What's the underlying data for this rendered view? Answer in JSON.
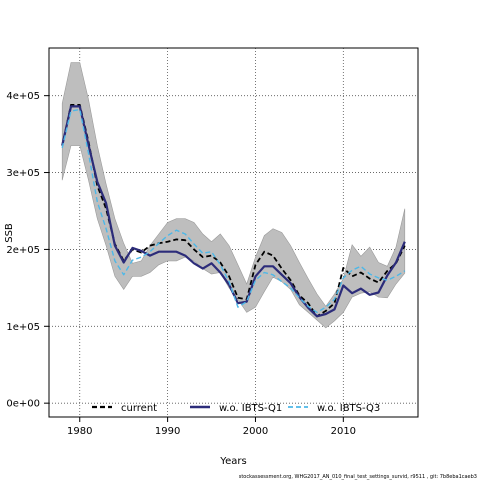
{
  "chart_data": {
    "type": "line",
    "xlabel": "Years",
    "ylabel": "SSB",
    "xlim": [
      1976.5,
      2018.5
    ],
    "ylim": [
      -18000,
      462000
    ],
    "x_ticks": [
      1980,
      1990,
      2000,
      2010
    ],
    "x_tick_labels": [
      "1980",
      "1990",
      "2000",
      "2010"
    ],
    "y_ticks": [
      0,
      100000,
      200000,
      300000,
      400000
    ],
    "y_tick_labels": [
      "0e+00",
      "1e+05",
      "2e+05",
      "3e+05",
      "4e+05"
    ],
    "grid": "dotted at ticks",
    "legend_position": "bottom",
    "x": [
      1978,
      1979,
      1980,
      1981,
      1982,
      1983,
      1984,
      1985,
      1986,
      1987,
      1988,
      1989,
      1990,
      1991,
      1992,
      1993,
      1994,
      1995,
      1996,
      1997,
      1998,
      1999,
      2000,
      2001,
      2002,
      2003,
      2004,
      2005,
      2006,
      2007,
      2008,
      2009,
      2010,
      2011,
      2012,
      2013,
      2014,
      2015,
      2016,
      2017
    ],
    "band": {
      "color": "#bebebe",
      "upper": [
        390000,
        443000,
        443000,
        395000,
        335000,
        285000,
        240000,
        208000,
        182000,
        185000,
        205000,
        220000,
        235000,
        240000,
        240000,
        235000,
        220000,
        210000,
        220000,
        205000,
        180000,
        155000,
        190000,
        218000,
        227000,
        222000,
        205000,
        183000,
        162000,
        142000,
        126000,
        142000,
        162000,
        206000,
        191000,
        203000,
        183000,
        178000,
        203000,
        253000
      ],
      "lower": [
        290000,
        335000,
        335000,
        290000,
        240000,
        205000,
        165000,
        148000,
        165000,
        165000,
        170000,
        180000,
        185000,
        185000,
        190000,
        185000,
        175000,
        168000,
        170000,
        150000,
        135000,
        118000,
        125000,
        145000,
        164000,
        158000,
        148000,
        128000,
        118000,
        108000,
        98000,
        107000,
        118000,
        138000,
        143000,
        145000,
        138000,
        137000,
        155000,
        169000
      ]
    },
    "series": [
      {
        "name": "current",
        "color": "#000000",
        "dash": "5,3",
        "width": 1.8,
        "values": [
          335000,
          388000,
          388000,
          340000,
          283000,
          253000,
          207000,
          185000,
          200000,
          196000,
          205000,
          208000,
          210000,
          213000,
          212000,
          200000,
          190000,
          192000,
          183000,
          165000,
          137000,
          135000,
          180000,
          197000,
          192000,
          175000,
          160000,
          140000,
          130000,
          113000,
          120000,
          130000,
          176000,
          165000,
          170000,
          162000,
          157000,
          172000,
          182000,
          205000
        ]
      },
      {
        "name": "w.o. IBTS-Q1",
        "color": "#2c2c7a",
        "dash": "",
        "width": 2.2,
        "values": [
          335000,
          386000,
          386000,
          336000,
          288000,
          260000,
          205000,
          183000,
          202000,
          198000,
          192000,
          197000,
          197000,
          197000,
          192000,
          182000,
          175000,
          182000,
          170000,
          154000,
          130000,
          132000,
          165000,
          178000,
          178000,
          167000,
          156000,
          138000,
          124000,
          113000,
          116000,
          122000,
          153000,
          143000,
          149000,
          141000,
          144000,
          166000,
          183000,
          210000
        ]
      },
      {
        "name": "w.o. IBTS-Q3",
        "color": "#4db8e8",
        "dash": "5,3",
        "width": 1.4,
        "values": [
          332000,
          380000,
          382000,
          325000,
          262000,
          227000,
          185000,
          167000,
          186000,
          190000,
          197000,
          208000,
          218000,
          225000,
          220000,
          207000,
          195000,
          197000,
          180000,
          158000,
          125000,
          132000,
          160000,
          170000,
          167000,
          158000,
          150000,
          137000,
          126000,
          118000,
          125000,
          135000,
          163000,
          173000,
          178000,
          168000,
          163000,
          160000,
          165000,
          172000
        ]
      }
    ]
  },
  "footer": "stockassessment.org, WHG2017_AN_010_final_test_settings_survid, r9511 , git: 7b8eba1caeb3"
}
